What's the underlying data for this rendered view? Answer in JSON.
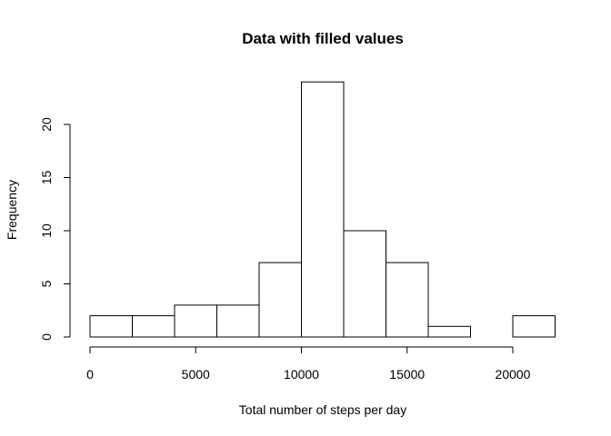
{
  "chart_data": {
    "type": "bar",
    "subtype": "histogram",
    "title": "Data with filled values",
    "xlabel": "Total number of steps per day",
    "ylabel": "Frequency",
    "bin_edges": [
      0,
      2000,
      4000,
      6000,
      8000,
      10000,
      12000,
      14000,
      16000,
      18000,
      20000,
      22000
    ],
    "values": [
      2,
      2,
      3,
      3,
      7,
      24,
      10,
      7,
      1,
      0,
      2
    ],
    "xlim": [
      0,
      22000
    ],
    "ylim": [
      0,
      24
    ],
    "x_ticks": [
      0,
      5000,
      10000,
      15000,
      20000
    ],
    "x_tick_labels": [
      "0",
      "5000",
      "10000",
      "15000",
      "20000"
    ],
    "y_ticks": [
      0,
      5,
      10,
      15,
      20
    ],
    "y_tick_labels": [
      "0",
      "5",
      "10",
      "15",
      "20"
    ],
    "grid": false,
    "bar_fill": "#ffffff",
    "bar_stroke": "#000000"
  }
}
